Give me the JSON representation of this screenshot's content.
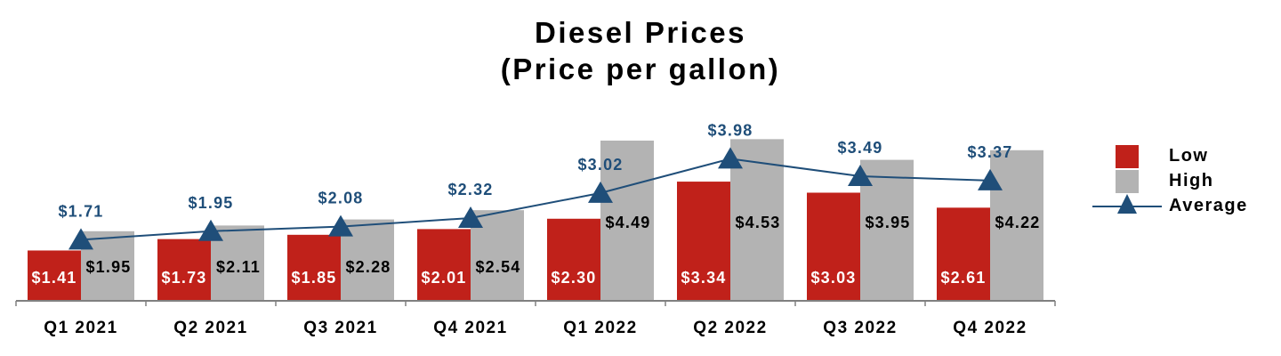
{
  "title": {
    "line1": "Diesel Prices",
    "line2": "(Price per gallon)"
  },
  "colors": {
    "low": "#c0211a",
    "high": "#b3b3b3",
    "average": "#1f4e79",
    "average_label": "#1f4e79",
    "axis": "#808080"
  },
  "legend": {
    "low": "Low",
    "high": "High",
    "average": "Average"
  },
  "chart_data": {
    "type": "bar",
    "categories": [
      "Q1 2021",
      "Q2 2021",
      "Q3 2021",
      "Q4 2021",
      "Q1 2022",
      "Q2 2022",
      "Q3 2022",
      "Q4 2022"
    ],
    "series": [
      {
        "name": "Low",
        "type": "bar",
        "values": [
          1.41,
          1.73,
          1.85,
          2.01,
          2.3,
          3.34,
          3.03,
          2.61
        ],
        "labels": [
          "$1.41",
          "$1.73",
          "$1.85",
          "$2.01",
          "$2.30",
          "$3.34",
          "$3.03",
          "$2.61"
        ]
      },
      {
        "name": "High",
        "type": "bar",
        "values": [
          1.95,
          2.11,
          2.28,
          2.54,
          4.49,
          4.53,
          3.95,
          4.22
        ],
        "labels": [
          "$1.95",
          "$2.11",
          "$2.28",
          "$2.54",
          "$4.49",
          "$4.53",
          "$3.95",
          "$4.22"
        ]
      },
      {
        "name": "Average",
        "type": "line",
        "marker": "triangle",
        "values": [
          1.71,
          1.95,
          2.08,
          2.32,
          3.02,
          3.98,
          3.49,
          3.37
        ],
        "labels": [
          "$1.71",
          "$1.95",
          "$2.08",
          "$2.32",
          "$3.02",
          "$3.98",
          "$3.49",
          "$3.37"
        ]
      }
    ],
    "title": "Diesel Prices (Price per gallon)",
    "xlabel": "",
    "ylabel": "",
    "ylim": [
      0,
      5
    ],
    "grid": false,
    "y_axis_visible": false,
    "legend_position": "right"
  }
}
